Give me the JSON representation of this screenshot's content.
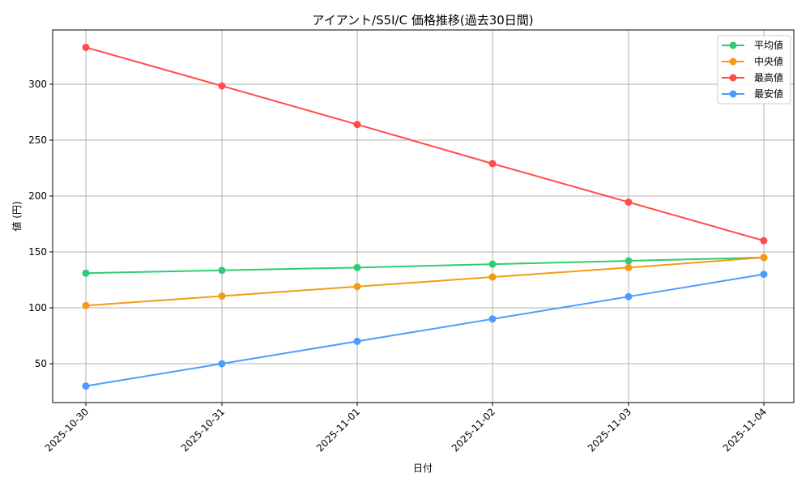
{
  "chart_data": {
    "type": "line",
    "title": "アイアント/S5I/C 価格推移(過去30日間)",
    "xlabel": "日付",
    "ylabel": "値 (円)",
    "categories": [
      "2025-10-30",
      "2025-10-31",
      "2025-11-01",
      "2025-11-02",
      "2025-11-03",
      "2025-11-04"
    ],
    "yticks": [
      50,
      100,
      150,
      200,
      250,
      300
    ],
    "ylim": [
      15,
      347
    ],
    "grid": true,
    "legend_position": "upper right",
    "series": [
      {
        "name": "平均値",
        "color": "#2ecc71",
        "values": [
          131,
          133.5,
          136,
          139,
          142,
          145
        ]
      },
      {
        "name": "中央値",
        "color": "#f39c12",
        "values": [
          102,
          110.5,
          119,
          127.5,
          136,
          145
        ]
      },
      {
        "name": "最高値",
        "color": "#ff4d4d",
        "values": [
          333,
          298.5,
          264,
          229,
          194.5,
          160
        ]
      },
      {
        "name": "最安値",
        "color": "#4d9cff",
        "values": [
          30,
          50,
          70,
          90,
          110,
          130
        ]
      }
    ]
  }
}
